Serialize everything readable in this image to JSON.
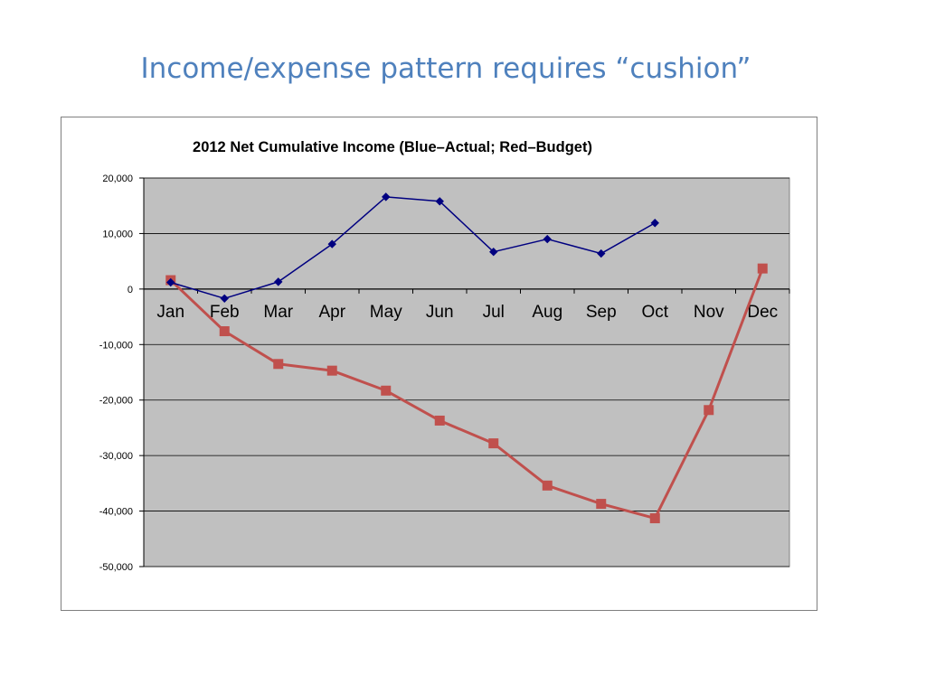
{
  "slide": {
    "title": "Income/expense pattern requires “cushion”"
  },
  "colors": {
    "title": "#4f81bd",
    "plot_background": "#c0c0c0",
    "gridline": "#000000",
    "actual_series": "#000080",
    "budget_series": "#c0504d"
  },
  "chart_data": {
    "type": "line",
    "title": "2012 Net Cumulative Income (Blue–Actual; Red–Budget)",
    "xlabel": "",
    "ylabel": "",
    "categories": [
      "Jan",
      "Feb",
      "Mar",
      "Apr",
      "May",
      "Jun",
      "Jul",
      "Aug",
      "Sep",
      "Oct",
      "Nov",
      "Dec"
    ],
    "ylim": [
      -50000,
      20000
    ],
    "yticks": [
      20000,
      10000,
      0,
      -10000,
      -20000,
      -30000,
      -40000,
      -50000
    ],
    "ytick_labels": [
      "20,000",
      "10,000",
      "0",
      "-10,000",
      "-20,000",
      "-30,000",
      "-40,000",
      "-50,000"
    ],
    "grid": true,
    "legend": "none",
    "series": [
      {
        "color": "#000080",
        "marker": "diamond",
        "values": [
          1200,
          -1700,
          1300,
          8100,
          16600,
          15800,
          6700,
          9000,
          6400,
          11900,
          null,
          null
        ]
      },
      {
        "color": "#c0504d",
        "marker": "square",
        "values": [
          1600,
          -7600,
          -13500,
          -14700,
          -18300,
          -23700,
          -27800,
          -35400,
          -38700,
          -41300,
          -21800,
          3700
        ]
      }
    ]
  }
}
